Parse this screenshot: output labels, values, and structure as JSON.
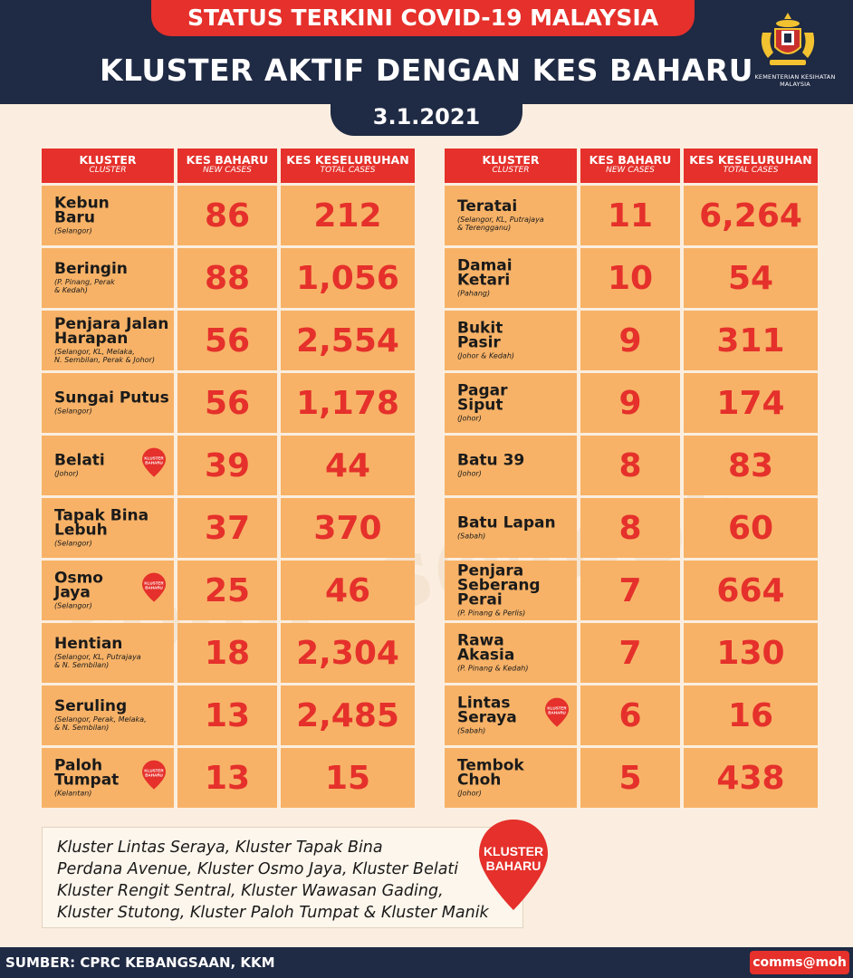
{
  "header": {
    "status_title": "STATUS TERKINI COVID-19 MALAYSIA",
    "main_title": "KLUSTER AKTIF DENGAN KES BAHARU",
    "date": "3.1.2021",
    "ministry": "KEMENTERIAN KESIHATAN MALAYSIA"
  },
  "columns": {
    "cluster": "KLUSTER",
    "cluster_sub": "CLUSTER",
    "new_cases": "KES BAHARU",
    "new_cases_sub": "NEW CASES",
    "total_cases": "KES KESELURUHAN",
    "total_cases_sub": "TOTAL CASES"
  },
  "badge_text": "KLUSTER BAHARU",
  "left_table": [
    {
      "name": "Kebun\nBaru",
      "states": "(Selangor)",
      "new_cases": "86",
      "total_cases": "212",
      "new_cluster": false
    },
    {
      "name": "Beringin",
      "states": "(P. Pinang, Perak\n& Kedah)",
      "new_cases": "88",
      "total_cases": "1,056",
      "new_cluster": false
    },
    {
      "name": "Penjara Jalan\nHarapan",
      "states": "(Selangor, KL, Melaka,\nN. Sembilan, Perak & Johor)",
      "new_cases": "56",
      "total_cases": "2,554",
      "new_cluster": false
    },
    {
      "name": "Sungai Putus",
      "states": "(Selangor)",
      "new_cases": "56",
      "total_cases": "1,178",
      "new_cluster": false
    },
    {
      "name": "Belati",
      "states": "(Johor)",
      "new_cases": "39",
      "total_cases": "44",
      "new_cluster": true
    },
    {
      "name": "Tapak Bina\nLebuh",
      "states": "(Selangor)",
      "new_cases": "37",
      "total_cases": "370",
      "new_cluster": false
    },
    {
      "name": "Osmo\nJaya",
      "states": "(Selangor)",
      "new_cases": "25",
      "total_cases": "46",
      "new_cluster": true
    },
    {
      "name": "Hentian",
      "states": "(Selangor, KL, Putrajaya\n& N. Sembilan)",
      "new_cases": "18",
      "total_cases": "2,304",
      "new_cluster": false
    },
    {
      "name": "Seruling",
      "states": "(Selangor, Perak, Melaka,\n& N. Sembilan)",
      "new_cases": "13",
      "total_cases": "2,485",
      "new_cluster": false
    },
    {
      "name": "Paloh\nTumpat",
      "states": "(Kelantan)",
      "new_cases": "13",
      "total_cases": "15",
      "new_cluster": true
    }
  ],
  "right_table": [
    {
      "name": "Teratai",
      "states": "(Selangor, KL, Putrajaya\n& Terengganu)",
      "new_cases": "11",
      "total_cases": "6,264",
      "new_cluster": false
    },
    {
      "name": "Damai\nKetari",
      "states": "(Pahang)",
      "new_cases": "10",
      "total_cases": "54",
      "new_cluster": false
    },
    {
      "name": "Bukit\nPasir",
      "states": "(Johor & Kedah)",
      "new_cases": "9",
      "total_cases": "311",
      "new_cluster": false
    },
    {
      "name": "Pagar\nSiput",
      "states": "(Johor)",
      "new_cases": "9",
      "total_cases": "174",
      "new_cluster": false
    },
    {
      "name": "Batu 39",
      "states": "(Johor)",
      "new_cases": "8",
      "total_cases": "83",
      "new_cluster": false
    },
    {
      "name": "Batu Lapan",
      "states": "(Sabah)",
      "new_cases": "8",
      "total_cases": "60",
      "new_cluster": false
    },
    {
      "name": "Penjara\nSeberang Perai",
      "states": "(P. Pinang & Perlis)",
      "new_cases": "7",
      "total_cases": "664",
      "new_cluster": false
    },
    {
      "name": "Rawa\nAkasia",
      "states": "(P. Pinang & Kedah)",
      "new_cases": "7",
      "total_cases": "130",
      "new_cluster": false
    },
    {
      "name": "Lintas\nSeraya",
      "states": "(Sabah)",
      "new_cases": "6",
      "total_cases": "16",
      "new_cluster": true
    },
    {
      "name": "Tembok\nChoh",
      "states": "(Johor)",
      "new_cases": "5",
      "total_cases": "438",
      "new_cluster": false
    }
  ],
  "note": "Kluster Lintas Seraya, Kluster Tapak Bina\nPerdana Avenue, Kluster Osmo Jaya, Kluster Belati\nKluster Rengit Sentral, Kluster Wawasan Gading,\nKluster Stutong, Kluster Paloh Tumpat & Kluster Manik",
  "big_badge": {
    "line1": "KLUSTER",
    "line2": "BAHARU"
  },
  "watermark": "comms@moh",
  "footer": {
    "source": "SUMBER: CPRC KEBANGSAAN, KKM",
    "brand": "comms@moh"
  },
  "colors": {
    "navy": "#1f2a44",
    "red": "#e5302b",
    "orange": "#f7b267",
    "cream": "#fbeee0"
  }
}
